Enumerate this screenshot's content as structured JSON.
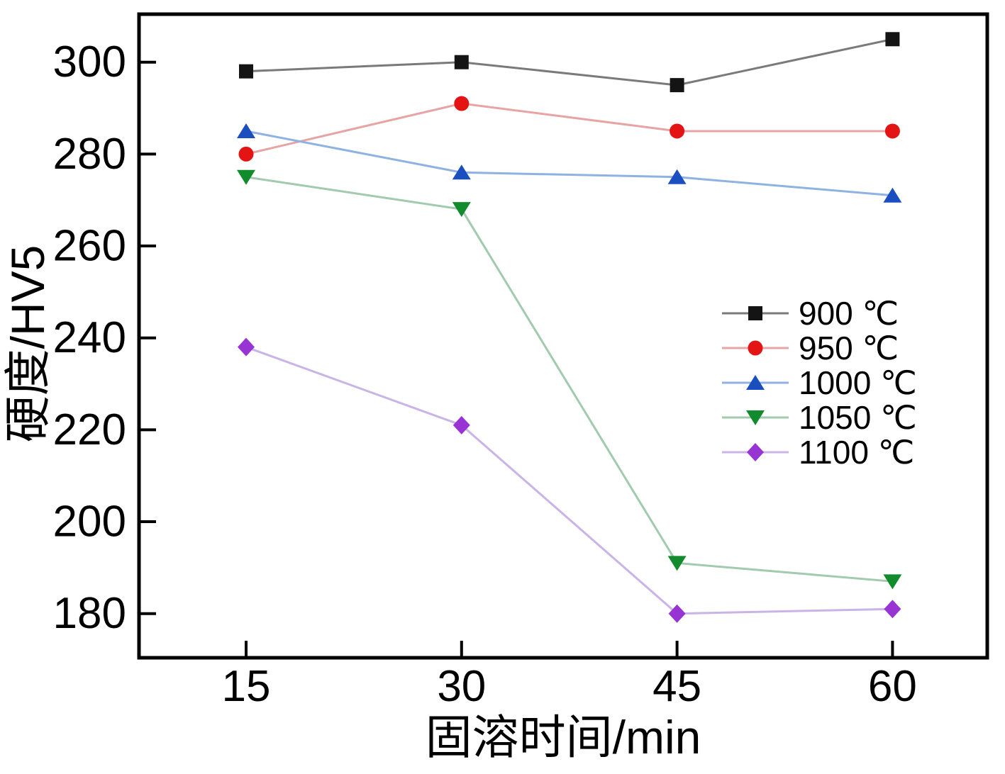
{
  "figure": {
    "background": "#ffffff",
    "axis_color": "#000000"
  },
  "chart_data": {
    "type": "line",
    "title": "",
    "xlabel": "固溶时间/min",
    "ylabel": "硬度/HV5",
    "x": [
      15,
      30,
      45,
      60
    ],
    "x_tick_labels": [
      "15",
      "30",
      "45",
      "60"
    ],
    "y_ticks": [
      300,
      280,
      260,
      240,
      220,
      200,
      180
    ],
    "y_tick_labels": [
      "300",
      "280",
      "260",
      "240",
      "220",
      "200",
      "180"
    ],
    "xlim": [
      7.5,
      66.6
    ],
    "ylim": [
      170.4,
      310.4
    ],
    "grid": false,
    "legend_position": "center-right",
    "series": [
      {
        "label": "900 ℃",
        "marker": "square",
        "marker_color": "#141414",
        "line_color": "#7a7a7a",
        "values": [
          298,
          300,
          295,
          305
        ]
      },
      {
        "label": "950 ℃",
        "marker": "circle",
        "marker_color": "#e41414",
        "line_color": "#e8a4a4",
        "values": [
          280,
          291,
          285,
          285
        ]
      },
      {
        "label": "1000 ℃",
        "marker": "triangle-up",
        "marker_color": "#1b4fc0",
        "line_color": "#8fb2e2",
        "values": [
          285,
          276,
          275,
          271
        ]
      },
      {
        "label": "1050 ℃",
        "marker": "triangle-down",
        "marker_color": "#128b2d",
        "line_color": "#a2caae",
        "values": [
          275,
          268,
          191,
          187
        ]
      },
      {
        "label": "1100 ℃",
        "marker": "diamond",
        "marker_color": "#9934d4",
        "line_color": "#c9b4e7",
        "values": [
          238,
          221,
          180,
          181
        ]
      }
    ]
  }
}
